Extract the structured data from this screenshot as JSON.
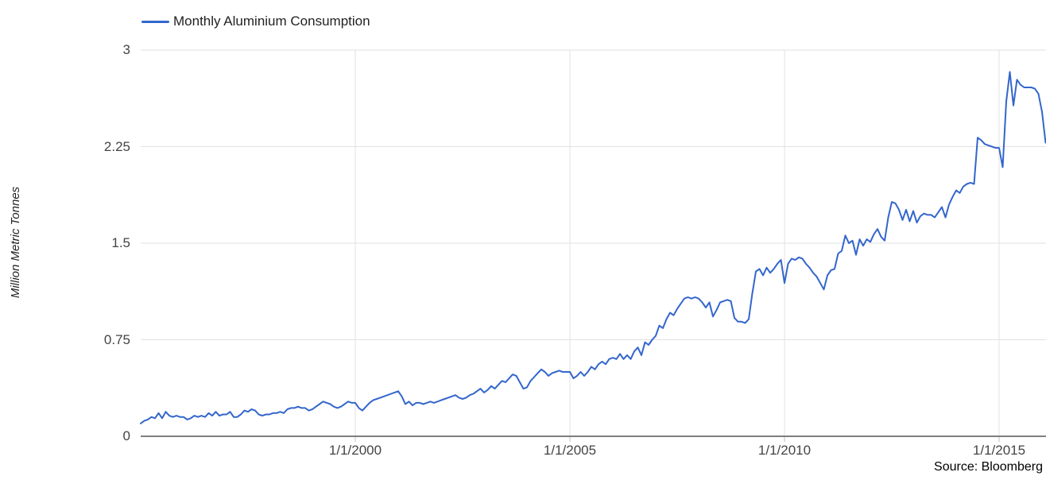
{
  "legend": {
    "series_label": "Monthly Aluminium Consumption"
  },
  "y_axis": {
    "title": "Million Metric Tonnes",
    "tick_labels": [
      "3",
      "2.25",
      "1.5",
      "0.75",
      "0"
    ]
  },
  "x_axis": {
    "tick_labels": [
      "1/1/2000",
      "1/1/2005",
      "1/1/2010",
      "1/1/2015"
    ]
  },
  "footer": {
    "source": "Source: Bloomberg"
  },
  "colors": {
    "series": "#3366cc",
    "gridline": "#e2e2e2",
    "baseline": "#7e7e7e",
    "tick_mark": "#c2c2c2",
    "tick_label": "#444444",
    "legend_text": "#222222",
    "source_text": "#000000"
  },
  "chart_data": {
    "type": "line",
    "title": "",
    "ylabel": "Million Metric Tonnes",
    "ylim": [
      0,
      3
    ],
    "y_tick_values": [
      3,
      2.25,
      1.5,
      0.75,
      0
    ],
    "x_tick_years": [
      2000,
      2005,
      2010,
      2015
    ],
    "x_tick_labels": [
      "1/1/2000",
      "1/1/2005",
      "1/1/2010",
      "1/1/2015"
    ],
    "grid": true,
    "legend_position": "top-left",
    "source": "Bloomberg",
    "frequency": "monthly",
    "x_start": "1995-01",
    "x_end": "2016-02",
    "series": [
      {
        "name": "Monthly Aluminium Consumption",
        "values": [
          0.1,
          0.12,
          0.13,
          0.15,
          0.14,
          0.18,
          0.14,
          0.19,
          0.16,
          0.15,
          0.16,
          0.15,
          0.15,
          0.13,
          0.14,
          0.16,
          0.15,
          0.16,
          0.15,
          0.18,
          0.16,
          0.19,
          0.16,
          0.17,
          0.17,
          0.19,
          0.15,
          0.15,
          0.17,
          0.2,
          0.19,
          0.21,
          0.2,
          0.17,
          0.16,
          0.17,
          0.17,
          0.18,
          0.18,
          0.19,
          0.18,
          0.21,
          0.22,
          0.22,
          0.23,
          0.22,
          0.22,
          0.2,
          0.21,
          0.23,
          0.25,
          0.27,
          0.26,
          0.25,
          0.23,
          0.22,
          0.23,
          0.25,
          0.27,
          0.26,
          0.26,
          0.22,
          0.2,
          0.23,
          0.26,
          0.28,
          0.29,
          0.3,
          0.31,
          0.32,
          0.33,
          0.34,
          0.35,
          0.31,
          0.25,
          0.27,
          0.24,
          0.26,
          0.26,
          0.25,
          0.26,
          0.27,
          0.26,
          0.27,
          0.28,
          0.29,
          0.3,
          0.31,
          0.32,
          0.3,
          0.29,
          0.3,
          0.32,
          0.33,
          0.35,
          0.37,
          0.34,
          0.36,
          0.39,
          0.37,
          0.4,
          0.43,
          0.42,
          0.45,
          0.48,
          0.47,
          0.42,
          0.37,
          0.38,
          0.43,
          0.46,
          0.49,
          0.52,
          0.5,
          0.47,
          0.49,
          0.5,
          0.51,
          0.5,
          0.5,
          0.5,
          0.45,
          0.47,
          0.5,
          0.47,
          0.5,
          0.54,
          0.52,
          0.56,
          0.58,
          0.56,
          0.6,
          0.61,
          0.6,
          0.64,
          0.6,
          0.63,
          0.6,
          0.66,
          0.69,
          0.63,
          0.73,
          0.71,
          0.75,
          0.78,
          0.86,
          0.84,
          0.91,
          0.96,
          0.94,
          0.99,
          1.03,
          1.07,
          1.08,
          1.07,
          1.08,
          1.07,
          1.04,
          1.0,
          1.04,
          0.93,
          0.98,
          1.04,
          1.05,
          1.06,
          1.05,
          0.92,
          0.89,
          0.89,
          0.88,
          0.91,
          1.11,
          1.28,
          1.3,
          1.25,
          1.31,
          1.27,
          1.3,
          1.34,
          1.37,
          1.19,
          1.34,
          1.38,
          1.37,
          1.39,
          1.38,
          1.34,
          1.31,
          1.27,
          1.24,
          1.19,
          1.14,
          1.25,
          1.29,
          1.3,
          1.42,
          1.44,
          1.56,
          1.5,
          1.52,
          1.41,
          1.53,
          1.48,
          1.53,
          1.51,
          1.57,
          1.61,
          1.55,
          1.52,
          1.7,
          1.82,
          1.81,
          1.76,
          1.68,
          1.76,
          1.67,
          1.75,
          1.66,
          1.71,
          1.73,
          1.72,
          1.72,
          1.7,
          1.74,
          1.78,
          1.7,
          1.8,
          1.86,
          1.91,
          1.89,
          1.94,
          1.96,
          1.97,
          1.96,
          2.32,
          2.3,
          2.27,
          2.26,
          2.25,
          2.24,
          2.24,
          2.09,
          2.6,
          2.83,
          2.57,
          2.77,
          2.73,
          2.71,
          2.71,
          2.71,
          2.7,
          2.66,
          2.52,
          2.28
        ]
      }
    ]
  }
}
